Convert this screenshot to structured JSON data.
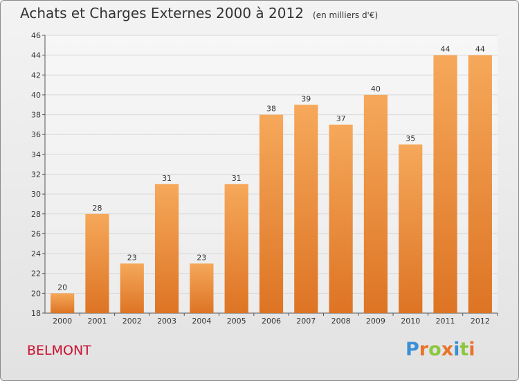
{
  "header": {
    "title": "Achats et Charges Externes 2000 à 2012",
    "subtitle": "(en milliers d'€)"
  },
  "footer": {
    "city": "BELMONT",
    "logo": "Proxiti"
  },
  "colors": {
    "bar_light": "#f6a85a",
    "bar_dark": "#e0782a",
    "city": "#c8102e"
  },
  "chart_data": {
    "type": "bar",
    "title": "Achats et Charges Externes 2000 à 2012",
    "subtitle": "(en milliers d'€)",
    "categories": [
      "2000",
      "2001",
      "2002",
      "2003",
      "2004",
      "2005",
      "2006",
      "2007",
      "2008",
      "2009",
      "2010",
      "2011",
      "2012"
    ],
    "values": [
      20,
      28,
      23,
      31,
      23,
      31,
      38,
      39,
      37,
      40,
      35,
      44,
      44
    ],
    "value_labels": [
      "20",
      "28",
      "23",
      "31",
      "23",
      "31",
      "38",
      "39",
      "37",
      "40",
      "35",
      "44",
      "44"
    ],
    "ylim": [
      18,
      46
    ],
    "yticks": [
      "18",
      "20",
      "22",
      "24",
      "26",
      "28",
      "30",
      "32",
      "34",
      "36",
      "38",
      "40",
      "42",
      "44",
      "46"
    ],
    "grid": true,
    "xlabel": "",
    "ylabel": ""
  }
}
